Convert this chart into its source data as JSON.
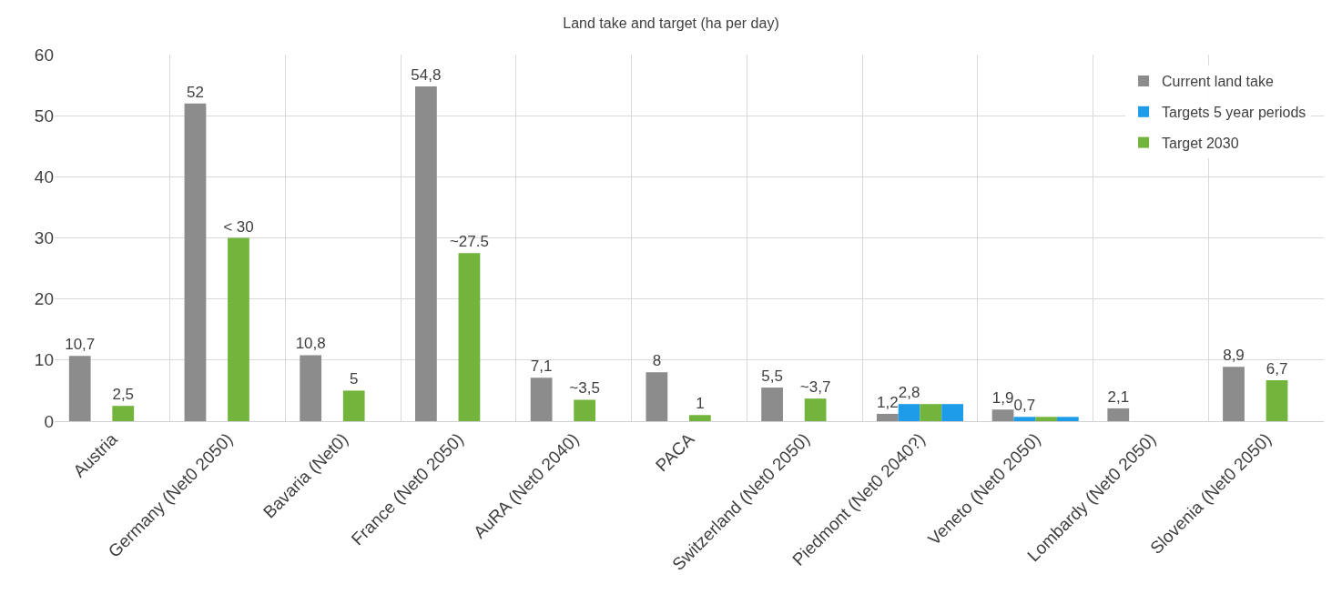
{
  "chart_data": {
    "type": "bar",
    "title": "Land take and target (ha per day)",
    "categories": [
      "Austria",
      "Germany (Net0 2050)",
      "Bavaria (Net0)",
      "France (Net0 2050)",
      "AuRA (Net0 2040)",
      "PACA",
      "Switzerland (Net0 2050)",
      "Piedmont (Net0 2040?)",
      "Veneto (Net0 2050)",
      "Lombardy (Net0 2050)",
      "Slovenia (Net0 2050)"
    ],
    "series": [
      {
        "name": "Current land take",
        "color": "#8c8c8c",
        "values": [
          10.7,
          52,
          10.8,
          54.8,
          7.1,
          8,
          5.5,
          1.2,
          1.9,
          2.1,
          8.9
        ],
        "value_labels": [
          "10,7",
          "52",
          "10,8",
          "54,8",
          "7,1",
          "8",
          "5,5",
          "1,2",
          "1,9",
          "2,1",
          "8,9"
        ]
      },
      {
        "name": "Targets 5 year periods",
        "color": "#1e9be9",
        "values": [
          null,
          null,
          null,
          null,
          null,
          null,
          null,
          2.8,
          0.7,
          null,
          null
        ],
        "value_labels": [
          null,
          null,
          null,
          null,
          null,
          null,
          null,
          "2,8",
          "0,7",
          null,
          null
        ]
      },
      {
        "name": "Target 2030",
        "color": "#72b43c",
        "values": [
          2.5,
          30,
          5,
          27.5,
          3.5,
          1,
          3.7,
          2.8,
          0.7,
          null,
          6.7
        ],
        "value_labels": [
          "2,5",
          "< 30",
          "5",
          "~27.5",
          "~3,5",
          "1",
          "~3,7",
          null,
          null,
          null,
          "6,7"
        ]
      },
      {
        "color": "#1e9be9",
        "values": [
          null,
          null,
          null,
          null,
          null,
          null,
          null,
          2.8,
          0.7,
          null,
          null
        ]
      }
    ],
    "ylim": [
      0,
      60
    ],
    "yticks": [
      0,
      10,
      20,
      30,
      40,
      50,
      60
    ],
    "grid": true,
    "legend": "top right"
  }
}
